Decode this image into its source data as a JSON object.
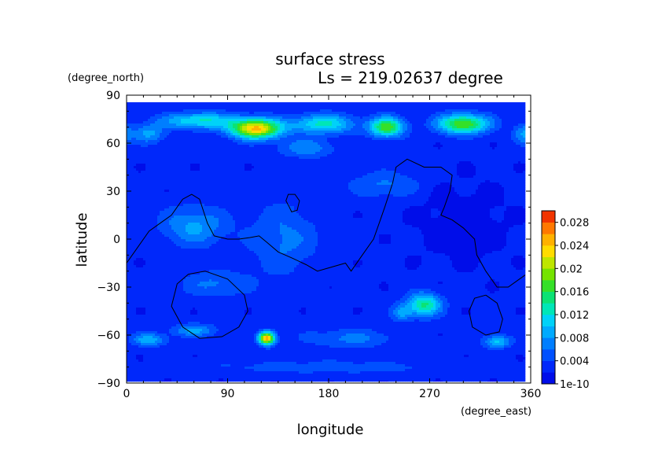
{
  "chart_data": {
    "type": "heatmap",
    "title": "surface stress",
    "subtitle": "Ls = 219.02637 degree",
    "xlabel": "longitude",
    "ylabel": "latitude",
    "x_unit": "(degree_east)",
    "y_unit": "(degree_north)",
    "xlim": [
      0,
      360
    ],
    "ylim": [
      -90,
      90
    ],
    "x_ticks": [
      0,
      90,
      180,
      270,
      360
    ],
    "y_ticks": [
      -90,
      -60,
      -30,
      0,
      30,
      60,
      90
    ],
    "colorbar": {
      "min": 0,
      "max": 0.03,
      "labels": [
        "1e-10",
        "0.004",
        "0.008",
        "0.012",
        "0.016",
        "0.02",
        "0.024",
        "0.028"
      ],
      "label_values": [
        0,
        0.004,
        0.008,
        0.012,
        0.016,
        0.02,
        0.024,
        0.028
      ],
      "levels": 15,
      "placement": "right"
    },
    "field": {
      "background": 0.0025,
      "blobs": [
        {
          "lon": 65,
          "lat": 74,
          "slon": 32,
          "slat": 5,
          "amp": 0.01
        },
        {
          "lon": 115,
          "lat": 69,
          "slon": 22,
          "slat": 6,
          "amp": 0.022
        },
        {
          "lon": 20,
          "lat": 66,
          "slon": 14,
          "slat": 6,
          "amp": 0.006
        },
        {
          "lon": 175,
          "lat": 72,
          "slon": 28,
          "slat": 6,
          "amp": 0.01
        },
        {
          "lon": 232,
          "lat": 70,
          "slon": 15,
          "slat": 6,
          "amp": 0.015
        },
        {
          "lon": 300,
          "lat": 72,
          "slon": 22,
          "slat": 6,
          "amp": 0.016
        },
        {
          "lon": 355,
          "lat": 66,
          "slon": 10,
          "slat": 6,
          "amp": 0.006
        },
        {
          "lon": 160,
          "lat": 57,
          "slon": 25,
          "slat": 6,
          "amp": 0.005
        },
        {
          "lon": 60,
          "lat": 8,
          "slon": 28,
          "slat": 12,
          "amp": 0.006
        },
        {
          "lon": 140,
          "lat": 0,
          "slon": 30,
          "slat": 22,
          "amp": 0.004
        },
        {
          "lon": 230,
          "lat": 34,
          "slon": 30,
          "slat": 8,
          "amp": 0.004
        },
        {
          "lon": 80,
          "lat": -28,
          "slon": 30,
          "slat": 8,
          "amp": 0.004
        },
        {
          "lon": 125,
          "lat": -62,
          "slon": 7,
          "slat": 4,
          "amp": 0.023
        },
        {
          "lon": 265,
          "lat": -41,
          "slon": 15,
          "slat": 7,
          "amp": 0.012
        },
        {
          "lon": 245,
          "lat": -46,
          "slon": 9,
          "slat": 5,
          "amp": 0.006
        },
        {
          "lon": 330,
          "lat": -64,
          "slon": 12,
          "slat": 4,
          "amp": 0.008
        },
        {
          "lon": 20,
          "lat": -63,
          "slon": 15,
          "slat": 4,
          "amp": 0.007
        },
        {
          "lon": 60,
          "lat": -57,
          "slon": 20,
          "slat": 4,
          "amp": 0.006
        },
        {
          "lon": 200,
          "lat": -62,
          "slon": 40,
          "slat": 6,
          "amp": 0.004
        },
        {
          "lon": 180,
          "lat": -80,
          "slon": 100,
          "slat": 4,
          "amp": 0.003
        },
        {
          "lon": 300,
          "lat": 10,
          "slon": 40,
          "slat": 25,
          "amp": -0.0015
        }
      ]
    },
    "contours": [
      {
        "name": "dichotomy",
        "points": [
          [
            0,
            -15
          ],
          [
            10,
            -5
          ],
          [
            20,
            5
          ],
          [
            30,
            10
          ],
          [
            40,
            15
          ],
          [
            50,
            25
          ],
          [
            58,
            28
          ],
          [
            65,
            25
          ],
          [
            72,
            10
          ],
          [
            78,
            2
          ],
          [
            90,
            0
          ],
          [
            100,
            0
          ],
          [
            110,
            1
          ],
          [
            118,
            2
          ],
          [
            125,
            -2
          ],
          [
            135,
            -8
          ],
          [
            148,
            -12
          ],
          [
            160,
            -16
          ],
          [
            170,
            -20
          ],
          [
            180,
            -18
          ],
          [
            195,
            -15
          ],
          [
            200,
            -20
          ],
          [
            210,
            -10
          ],
          [
            220,
            0
          ],
          [
            225,
            10
          ],
          [
            230,
            20
          ],
          [
            237,
            35
          ],
          [
            240,
            45
          ],
          [
            250,
            50
          ],
          [
            265,
            45
          ],
          [
            280,
            45
          ],
          [
            290,
            40
          ],
          [
            288,
            30
          ],
          [
            283,
            20
          ],
          [
            280,
            15
          ],
          [
            290,
            12
          ],
          [
            300,
            7
          ],
          [
            310,
            0
          ],
          [
            312,
            -10
          ],
          [
            320,
            -20
          ],
          [
            330,
            -30
          ],
          [
            340,
            -30
          ],
          [
            350,
            -25
          ],
          [
            360,
            -20
          ]
        ]
      },
      {
        "name": "ring-1",
        "points": [
          [
            145,
            20
          ],
          [
            142,
            24
          ],
          [
            144,
            28
          ],
          [
            150,
            28
          ],
          [
            154,
            24
          ],
          [
            152,
            18
          ],
          [
            147,
            17
          ],
          [
            145,
            20
          ]
        ]
      },
      {
        "name": "ring-2",
        "points": [
          [
            70,
            -20
          ],
          [
            90,
            -25
          ],
          [
            105,
            -35
          ],
          [
            108,
            -45
          ],
          [
            100,
            -55
          ],
          [
            85,
            -61
          ],
          [
            65,
            -62
          ],
          [
            50,
            -55
          ],
          [
            40,
            -42
          ],
          [
            45,
            -28
          ],
          [
            55,
            -22
          ],
          [
            70,
            -20
          ]
        ]
      },
      {
        "name": "ring-3",
        "points": [
          [
            320,
            -35
          ],
          [
            330,
            -40
          ],
          [
            335,
            -50
          ],
          [
            332,
            -58
          ],
          [
            320,
            -60
          ],
          [
            308,
            -55
          ],
          [
            305,
            -45
          ],
          [
            310,
            -37
          ],
          [
            320,
            -35
          ]
        ]
      }
    ]
  }
}
